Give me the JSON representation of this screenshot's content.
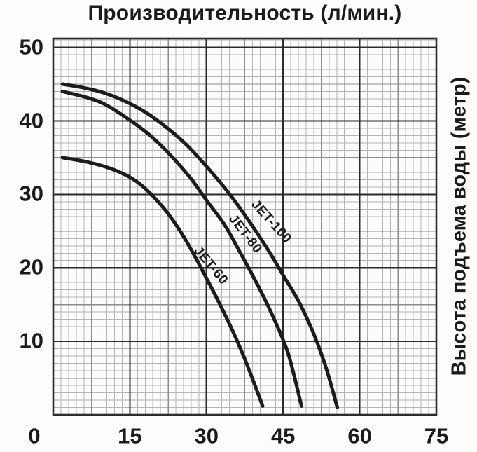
{
  "chart_data": {
    "type": "line",
    "title": "Производительность (л/мин.)",
    "xlabel": "Производительность (л/мин.)",
    "ylabel": "Высота подъема воды (метр)",
    "xlim": [
      0,
      75
    ],
    "ylim": [
      0,
      51.2
    ],
    "x_ticks": [
      0,
      15,
      30,
      45,
      60,
      75
    ],
    "y_ticks": [
      10,
      20,
      30,
      40,
      50
    ],
    "grid": {
      "minor_x_step": 1.5,
      "minor_y_step": 1,
      "medium_x_step": 7.5,
      "medium_y_step": 5,
      "major_x_step": 15,
      "major_y_step": 10
    },
    "legend_position": "labels-on-curves",
    "curve_color": "#1c1c1c",
    "series": [
      {
        "name": "JET-100",
        "points": [
          [
            1.8,
            45
          ],
          [
            6,
            44.5
          ],
          [
            10,
            43.8
          ],
          [
            14,
            42.7
          ],
          [
            18,
            41.2
          ],
          [
            22,
            39.2
          ],
          [
            26,
            36.8
          ],
          [
            30,
            33.8
          ],
          [
            34,
            30.5
          ],
          [
            38,
            26.7
          ],
          [
            42,
            22.5
          ],
          [
            45,
            19
          ],
          [
            48,
            15.5
          ],
          [
            51,
            11
          ],
          [
            53.5,
            6.2
          ],
          [
            55.6,
            1
          ]
        ]
      },
      {
        "name": "JET-80",
        "points": [
          [
            1.8,
            44
          ],
          [
            6,
            43.3
          ],
          [
            10,
            42.3
          ],
          [
            15,
            40.1
          ],
          [
            19,
            38
          ],
          [
            23,
            35.3
          ],
          [
            27,
            32.1
          ],
          [
            30,
            29.2
          ],
          [
            33.5,
            25.9
          ],
          [
            36.5,
            22.2
          ],
          [
            40,
            17.7
          ],
          [
            43,
            13.4
          ],
          [
            46,
            8.3
          ],
          [
            48.6,
            1.2
          ]
        ]
      },
      {
        "name": "JET-60",
        "points": [
          [
            1.8,
            35
          ],
          [
            6,
            34.5
          ],
          [
            10,
            33.8
          ],
          [
            14,
            32.7
          ],
          [
            17,
            31.4
          ],
          [
            20,
            29.4
          ],
          [
            23,
            26.9
          ],
          [
            26,
            23.7
          ],
          [
            29,
            19.9
          ],
          [
            32,
            15.9
          ],
          [
            35,
            11.6
          ],
          [
            37.5,
            7.6
          ],
          [
            39.5,
            4
          ],
          [
            41,
            1.2
          ]
        ]
      }
    ]
  }
}
